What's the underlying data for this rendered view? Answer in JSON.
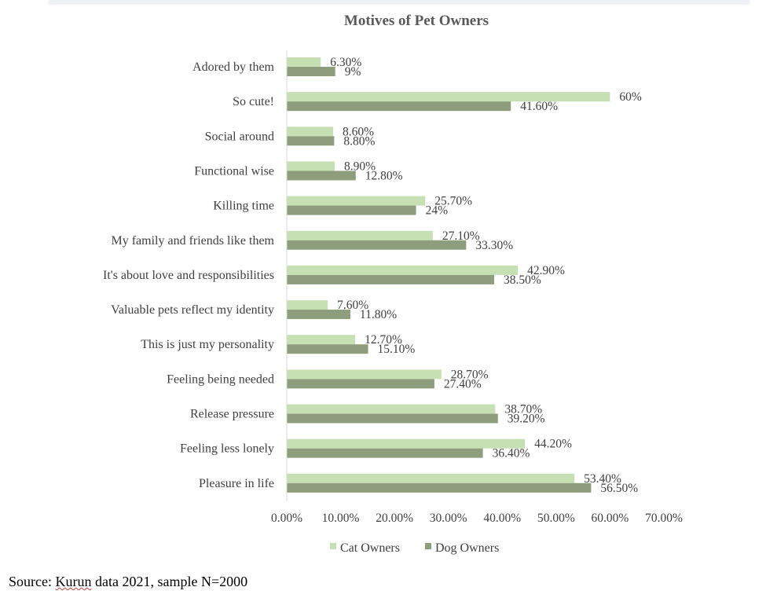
{
  "chart_data": {
    "type": "bar",
    "orientation": "horizontal",
    "title": "Motives of Pet Owners",
    "categories": [
      "Adored by them",
      "So cute!",
      "Social around",
      "Functional wise",
      "Killing time",
      "My family and friends like them",
      "It's about love and responsibilities",
      "Valuable pets reflect my identity",
      "This is just my personality",
      "Feeling being needed",
      "Release pressure",
      "Feeling less lonely",
      "Pleasure in life"
    ],
    "series": [
      {
        "name": "Cat Owners",
        "color": "#c6e0b4",
        "values": [
          6.3,
          60,
          8.6,
          8.9,
          25.7,
          27.1,
          42.9,
          7.6,
          12.7,
          28.7,
          38.7,
          44.2,
          53.4
        ],
        "labels": [
          "6.30%",
          "60%",
          "8.60%",
          "8.90%",
          "25.70%",
          "27.10%",
          "42.90%",
          "7.60%",
          "12.70%",
          "28.70%",
          "38.70%",
          "44.20%",
          "53.40%"
        ]
      },
      {
        "name": "Dog Owners",
        "color": "#8e9e7c",
        "values": [
          9,
          41.6,
          8.8,
          12.8,
          24,
          33.3,
          38.5,
          11.8,
          15.1,
          27.4,
          39.2,
          36.4,
          56.5
        ],
        "labels": [
          "9%",
          "41.60%",
          "8.80%",
          "12.80%",
          "24%",
          "33.30%",
          "38.50%",
          "11.80%",
          "15.10%",
          "27.40%",
          "39.20%",
          "36.40%",
          "56.50%"
        ]
      }
    ],
    "xlim": [
      0,
      70
    ],
    "xticks": [
      "0.00%",
      "10.00%",
      "20.00%",
      "30.00%",
      "40.00%",
      "50.00%",
      "60.00%",
      "70.00%"
    ],
    "grid": false,
    "legend_position": "bottom"
  },
  "source_prefix": "Source: ",
  "source_underlined": "Kurun",
  "source_suffix": " data 2021, sample N=2000"
}
